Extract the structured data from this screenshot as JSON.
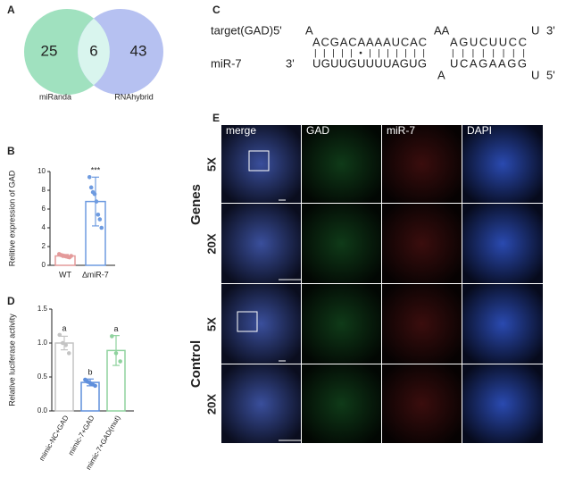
{
  "panel_labels": [
    "A",
    "B",
    "C",
    "D",
    "E"
  ],
  "venn": {
    "left_only": 25,
    "both": 6,
    "right_only": 43,
    "sets": [
      "miRanda",
      "RNAhybrid"
    ],
    "colors": [
      "#8fdcb4",
      "#a9b6ef"
    ]
  },
  "alignment": {
    "rows": [
      [
        "target(GAD)5'",
        "A",
        "AA",
        "U",
        "3'"
      ],
      [
        "ACGACAAAAUCAC",
        "AGUCUUCC"
      ],
      [
        "|||||•|||||||",
        "||||||||"
      ],
      [
        "miR-7",
        "3'",
        "UGUUGUUUUAGUG",
        "UCAGAAGG"
      ],
      [
        "A",
        "U",
        "5'"
      ]
    ]
  },
  "microscopy": {
    "columns": [
      "merge",
      "GAD",
      "miR-7",
      "DAPI"
    ],
    "magnifications": [
      "5X",
      "20X",
      "5X",
      "20X"
    ],
    "groups": [
      "Genes",
      "Control"
    ]
  },
  "chart_data": [
    {
      "type": "bar",
      "ylabel": "Relitive expression of GAD",
      "categories": [
        "WT",
        "∆miR-7"
      ],
      "values": [
        1.0,
        6.8
      ],
      "errors": [
        0.15,
        2.6
      ],
      "points": [
        [
          1.2,
          1.1,
          1.05,
          1.0,
          0.95,
          0.9,
          0.85,
          1.0
        ],
        [
          9.4,
          8.3,
          7.8,
          7.6,
          6.8,
          5.4,
          4.9,
          4.0
        ]
      ],
      "colors": [
        "#e49a9a",
        "#6e9be0"
      ],
      "annotations": [
        null,
        "***"
      ],
      "ylim": [
        0,
        10
      ],
      "yticks": [
        0,
        2,
        4,
        6,
        8,
        10
      ]
    },
    {
      "type": "bar",
      "ylabel": "Relative luciferase activity",
      "categories": [
        "mimic-NC+GAD",
        "mimic-7+GAD",
        "mimic-7+GAD(mut)"
      ],
      "values": [
        1.0,
        0.42,
        0.89
      ],
      "errors": [
        0.1,
        0.05,
        0.22
      ],
      "points": [
        [
          1.12,
          1.0,
          0.97,
          0.85
        ],
        [
          0.46,
          0.43,
          0.41,
          0.39,
          0.37
        ],
        [
          1.1,
          0.85,
          0.73
        ]
      ],
      "colors": [
        "#c4c4c4",
        "#5f8fdc",
        "#8fd29e"
      ],
      "annotations": [
        "a",
        "b",
        "a"
      ],
      "ylim": [
        0,
        1.5
      ],
      "yticks": [
        {
          "value": 0,
          "label": "0.0"
        },
        0.5,
        {
          "value": 1,
          "label": "1.0"
        },
        1.5
      ]
    }
  ]
}
